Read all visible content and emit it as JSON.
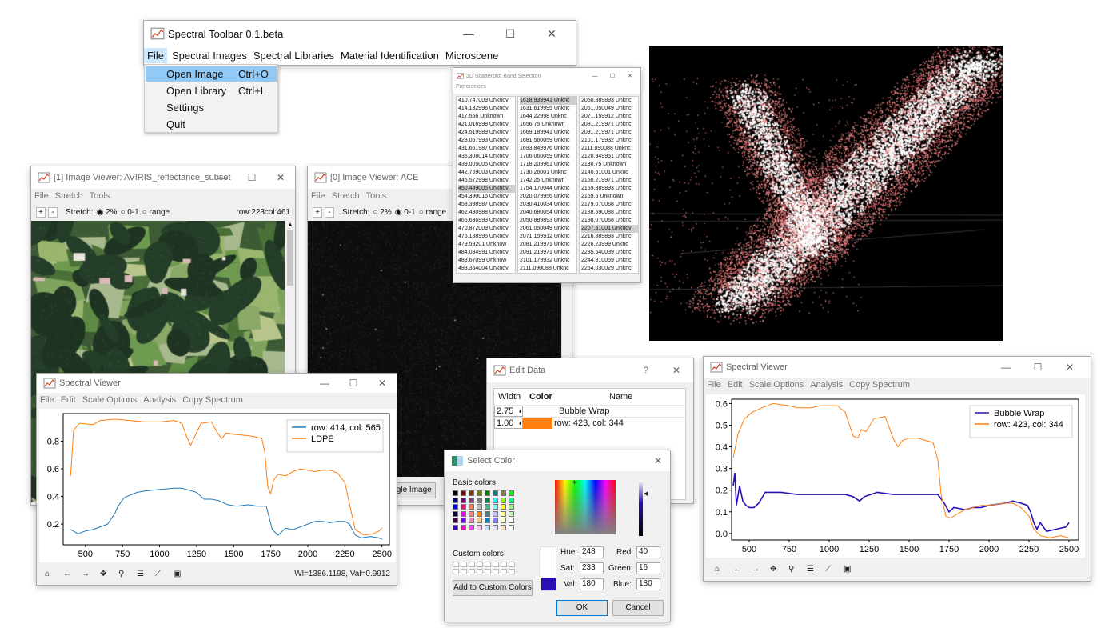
{
  "toolbar": {
    "title": "Spectral Toolbar 0.1.beta",
    "controls": [
      "—",
      "☐",
      "✕"
    ],
    "menu": [
      "File",
      "Spectral Images",
      "Spectral Libraries",
      "Material Identification",
      "Microscene"
    ],
    "file_menu": [
      {
        "label": "Open Image",
        "shortcut": "Ctrl+O"
      },
      {
        "label": "Open Library",
        "shortcut": "Ctrl+L"
      },
      {
        "label": "Settings",
        "shortcut": ""
      },
      {
        "label": "Quit",
        "shortcut": ""
      }
    ]
  },
  "band_selection": {
    "title": "3D Scatterplot Band Selection",
    "menu": "Preferences",
    "col1": [
      "410.747009 Unknov",
      "414.132996 Unknov",
      "417.556 Unknown",
      "421.016998 Unknov",
      "424.519989 Unknov",
      "428.067993 Unknov",
      "431.661987 Unknov",
      "435.308014 Unknov",
      "439.005005 Unknov",
      "442.759003 Unknov",
      "446.572998 Unknov",
      "450.449005 Unknov",
      "454.390015 Unknov",
      "458.398987 Unknov",
      "462.480988 Unknov",
      "466.636993 Unknov",
      "470.872009 Unknov",
      "475.188995 Unknov",
      "479.59201 Unknow",
      "484.084991 Unknov",
      "488.67099 Unknow",
      "493.354004 Unknov"
    ],
    "col2": [
      "1618.939941 Unknc",
      "1631.619995 Unknc",
      "1644.22998 Unknc",
      "1656.75 Unknown",
      "1669.189941 Unknc",
      "1681.560059 Unknc",
      "1693.849976 Unknc",
      "1706.060059 Unknc",
      "1718.209961 Unknc",
      "1730.26001 Unknc",
      "1742.25 Unknown",
      "1754.170044 Unknc",
      "2020.079956 Unknc",
      "2030.410034 Unknc",
      "2040.680054 Unknc",
      "2050.889893 Unknc",
      "2061.050049 Unknc",
      "2071.159912 Unknc",
      "2081.219971 Unknc",
      "2091.219971 Unknc",
      "2101.179932 Unknc",
      "2111.090088 Unknc"
    ],
    "col3": [
      "2050.889893 Unknc",
      "2061.050049 Unknc",
      "2071.159912 Unknc",
      "2081.219971 Unknc",
      "2091.219971 Unknc",
      "2101.179932 Unknc",
      "2111.090088 Unknc",
      "2120.949951 Unknc",
      "2130.75 Unknown",
      "2140.51001 Unknc",
      "2150.219971 Unknc",
      "2159.889893 Unknc",
      "2169.5 Unknown",
      "2179.070068 Unknc",
      "2188.590088 Unknc",
      "2198.070068 Unknc",
      "2207.51001 Unknov",
      "2216.889893 Unknc",
      "2226.23999 Unknc",
      "2235.540039 Unknc",
      "2244.810059 Unknc",
      "2254.030029 Unknc"
    ],
    "selected": {
      "col1": 11,
      "col2": 0,
      "col3": 16
    }
  },
  "viewer1": {
    "title": "[1] Image Viewer: AVIRIS_reflectance_subset",
    "menu": [
      "File",
      "Stretch",
      "Tools"
    ],
    "stretch_label": "Stretch:",
    "options": [
      "2%",
      "0-1",
      "range"
    ],
    "selected": "2%",
    "row": "row:223",
    "col": "col:461"
  },
  "viewer0": {
    "title": "[0] Image Viewer: ACE",
    "menu": [
      "File",
      "Stretch",
      "Tools"
    ],
    "stretch_label": "Stretch:",
    "options": [
      "2%",
      "0-1",
      "range"
    ],
    "selected": "0-1",
    "toggle_btn": "ggle Image"
  },
  "spectral_left": {
    "title": "Spectral Viewer",
    "menu": [
      "File",
      "Edit",
      "Scale Options",
      "Analysis",
      "Copy Spectrum"
    ],
    "status": "Wl=1386.1198, Val=0.9912"
  },
  "spectral_right": {
    "title": "Spectral Viewer",
    "menu": [
      "File",
      "Edit",
      "Scale Options",
      "Analysis",
      "Copy Spectrum"
    ]
  },
  "edit_data": {
    "title": "Edit Data",
    "help": "?",
    "headers": [
      "Width",
      "Color",
      "Name"
    ],
    "rows": [
      {
        "width": "2.75",
        "color": "",
        "name": "Bubble Wrap"
      },
      {
        "width": "1.00",
        "color": "#ff7f0e",
        "name": "row: 423, col: 344"
      }
    ]
  },
  "select_color": {
    "title": "Select Color",
    "basic_label": "Basic colors",
    "custom_label": "Custom colors",
    "add_button": "Add to Custom Colors",
    "fields": [
      {
        "label": "Hue:",
        "value": "248"
      },
      {
        "label": "Red:",
        "value": "40"
      },
      {
        "label": "Sat:",
        "value": "233"
      },
      {
        "label": "Green:",
        "value": "16"
      },
      {
        "label": "Val:",
        "value": "180"
      },
      {
        "label": "Blue:",
        "value": "180"
      }
    ],
    "ok": "OK",
    "cancel": "Cancel",
    "current_color": "#2810b4"
  },
  "chart_data": [
    {
      "type": "line",
      "xlim": [
        350,
        2550
      ],
      "ylim": [
        0.05,
        1.0
      ],
      "x_ticks": [
        500,
        750,
        1000,
        1250,
        1500,
        1750,
        2000,
        2250,
        2500
      ],
      "y_ticks": [
        0.2,
        0.4,
        0.6,
        0.8
      ],
      "legend_position": "top-right",
      "series": [
        {
          "name": "row: 414, col: 565",
          "color": "#1f77b4",
          "points": [
            [
              400,
              0.16
            ],
            [
              450,
              0.13
            ],
            [
              500,
              0.15
            ],
            [
              550,
              0.16
            ],
            [
              600,
              0.18
            ],
            [
              650,
              0.2
            ],
            [
              700,
              0.28
            ],
            [
              720,
              0.33
            ],
            [
              760,
              0.39
            ],
            [
              800,
              0.41
            ],
            [
              850,
              0.43
            ],
            [
              900,
              0.44
            ],
            [
              1000,
              0.45
            ],
            [
              1100,
              0.46
            ],
            [
              1150,
              0.46
            ],
            [
              1250,
              0.43
            ],
            [
              1300,
              0.38
            ],
            [
              1350,
              0.38
            ],
            [
              1400,
              0.37
            ],
            [
              1460,
              0.34
            ],
            [
              1520,
              0.33
            ],
            [
              1600,
              0.34
            ],
            [
              1660,
              0.33
            ],
            [
              1720,
              0.33
            ],
            [
              1760,
              0.16
            ],
            [
              1800,
              0.12
            ],
            [
              1850,
              0.17
            ],
            [
              1900,
              0.16
            ],
            [
              1950,
              0.18
            ],
            [
              2000,
              0.2
            ],
            [
              2050,
              0.22
            ],
            [
              2100,
              0.22
            ],
            [
              2150,
              0.21
            ],
            [
              2200,
              0.22
            ],
            [
              2250,
              0.22
            ],
            [
              2280,
              0.2
            ],
            [
              2320,
              0.12
            ],
            [
              2360,
              0.1
            ],
            [
              2420,
              0.11
            ],
            [
              2480,
              0.1
            ],
            [
              2500,
              0.09
            ]
          ]
        },
        {
          "name": "LDPE",
          "color": "#ff7f0e",
          "points": [
            [
              400,
              0.55
            ],
            [
              420,
              0.88
            ],
            [
              460,
              0.93
            ],
            [
              550,
              0.92
            ],
            [
              600,
              0.95
            ],
            [
              700,
              0.96
            ],
            [
              800,
              0.95
            ],
            [
              900,
              0.94
            ],
            [
              1000,
              0.94
            ],
            [
              1100,
              0.95
            ],
            [
              1150,
              0.93
            ],
            [
              1180,
              0.84
            ],
            [
              1210,
              0.77
            ],
            [
              1240,
              0.84
            ],
            [
              1280,
              0.93
            ],
            [
              1350,
              0.94
            ],
            [
              1390,
              0.86
            ],
            [
              1420,
              0.82
            ],
            [
              1450,
              0.86
            ],
            [
              1500,
              0.85
            ],
            [
              1600,
              0.84
            ],
            [
              1650,
              0.83
            ],
            [
              1690,
              0.82
            ],
            [
              1710,
              0.72
            ],
            [
              1730,
              0.47
            ],
            [
              1750,
              0.42
            ],
            [
              1770,
              0.52
            ],
            [
              1800,
              0.56
            ],
            [
              1850,
              0.55
            ],
            [
              1900,
              0.58
            ],
            [
              1950,
              0.6
            ],
            [
              2000,
              0.59
            ],
            [
              2050,
              0.58
            ],
            [
              2100,
              0.59
            ],
            [
              2150,
              0.59
            ],
            [
              2200,
              0.57
            ],
            [
              2250,
              0.5
            ],
            [
              2290,
              0.3
            ],
            [
              2320,
              0.16
            ],
            [
              2380,
              0.12
            ],
            [
              2440,
              0.13
            ],
            [
              2480,
              0.15
            ],
            [
              2500,
              0.17
            ]
          ]
        }
      ]
    },
    {
      "type": "line",
      "xlim": [
        390,
        2560
      ],
      "ylim": [
        -0.03,
        0.62
      ],
      "x_ticks": [
        500,
        750,
        1000,
        1250,
        1500,
        1750,
        2000,
        2250,
        2500
      ],
      "y_ticks": [
        0.0,
        0.1,
        0.2,
        0.3,
        0.4,
        0.5,
        0.6
      ],
      "legend_position": "top-right",
      "series": [
        {
          "name": "Bubble Wrap",
          "color": "#2810b4",
          "points": [
            [
              400,
              0.22
            ],
            [
              410,
              0.28
            ],
            [
              420,
              0.13
            ],
            [
              440,
              0.22
            ],
            [
              460,
              0.15
            ],
            [
              480,
              0.13
            ],
            [
              500,
              0.12
            ],
            [
              530,
              0.12
            ],
            [
              560,
              0.14
            ],
            [
              600,
              0.19
            ],
            [
              700,
              0.19
            ],
            [
              800,
              0.18
            ],
            [
              900,
              0.18
            ],
            [
              1000,
              0.18
            ],
            [
              1100,
              0.18
            ],
            [
              1150,
              0.17
            ],
            [
              1190,
              0.15
            ],
            [
              1220,
              0.17
            ],
            [
              1260,
              0.18
            ],
            [
              1300,
              0.19
            ],
            [
              1400,
              0.18
            ],
            [
              1500,
              0.18
            ],
            [
              1600,
              0.18
            ],
            [
              1680,
              0.18
            ],
            [
              1720,
              0.14
            ],
            [
              1750,
              0.1
            ],
            [
              1780,
              0.12
            ],
            [
              1850,
              0.11
            ],
            [
              1900,
              0.12
            ],
            [
              1950,
              0.12
            ],
            [
              2000,
              0.13
            ],
            [
              2100,
              0.14
            ],
            [
              2150,
              0.15
            ],
            [
              2200,
              0.14
            ],
            [
              2240,
              0.13
            ],
            [
              2260,
              0.1
            ],
            [
              2280,
              0.05
            ],
            [
              2300,
              0.02
            ],
            [
              2320,
              0.05
            ],
            [
              2360,
              0.01
            ],
            [
              2420,
              0.02
            ],
            [
              2480,
              0.03
            ],
            [
              2500,
              0.05
            ]
          ]
        },
        {
          "name": "row: 423, col: 344",
          "color": "#ff7f0e",
          "points": [
            [
              400,
              0.35
            ],
            [
              430,
              0.46
            ],
            [
              470,
              0.53
            ],
            [
              520,
              0.56
            ],
            [
              580,
              0.58
            ],
            [
              650,
              0.6
            ],
            [
              750,
              0.59
            ],
            [
              800,
              0.58
            ],
            [
              880,
              0.58
            ],
            [
              950,
              0.59
            ],
            [
              1050,
              0.59
            ],
            [
              1100,
              0.56
            ],
            [
              1150,
              0.45
            ],
            [
              1180,
              0.44
            ],
            [
              1200,
              0.48
            ],
            [
              1230,
              0.47
            ],
            [
              1280,
              0.53
            ],
            [
              1350,
              0.54
            ],
            [
              1400,
              0.44
            ],
            [
              1430,
              0.4
            ],
            [
              1460,
              0.43
            ],
            [
              1500,
              0.44
            ],
            [
              1550,
              0.44
            ],
            [
              1600,
              0.43
            ],
            [
              1650,
              0.42
            ],
            [
              1680,
              0.34
            ],
            [
              1700,
              0.18
            ],
            [
              1730,
              0.08
            ],
            [
              1760,
              0.07
            ],
            [
              1800,
              0.09
            ],
            [
              1850,
              0.11
            ],
            [
              1900,
              0.12
            ],
            [
              1950,
              0.13
            ],
            [
              2000,
              0.13
            ],
            [
              2100,
              0.14
            ],
            [
              2150,
              0.14
            ],
            [
              2200,
              0.12
            ],
            [
              2250,
              0.08
            ],
            [
              2280,
              0.02
            ],
            [
              2320,
              -0.01
            ],
            [
              2380,
              -0.02
            ],
            [
              2450,
              -0.01
            ],
            [
              2500,
              -0.02
            ]
          ]
        }
      ]
    }
  ]
}
